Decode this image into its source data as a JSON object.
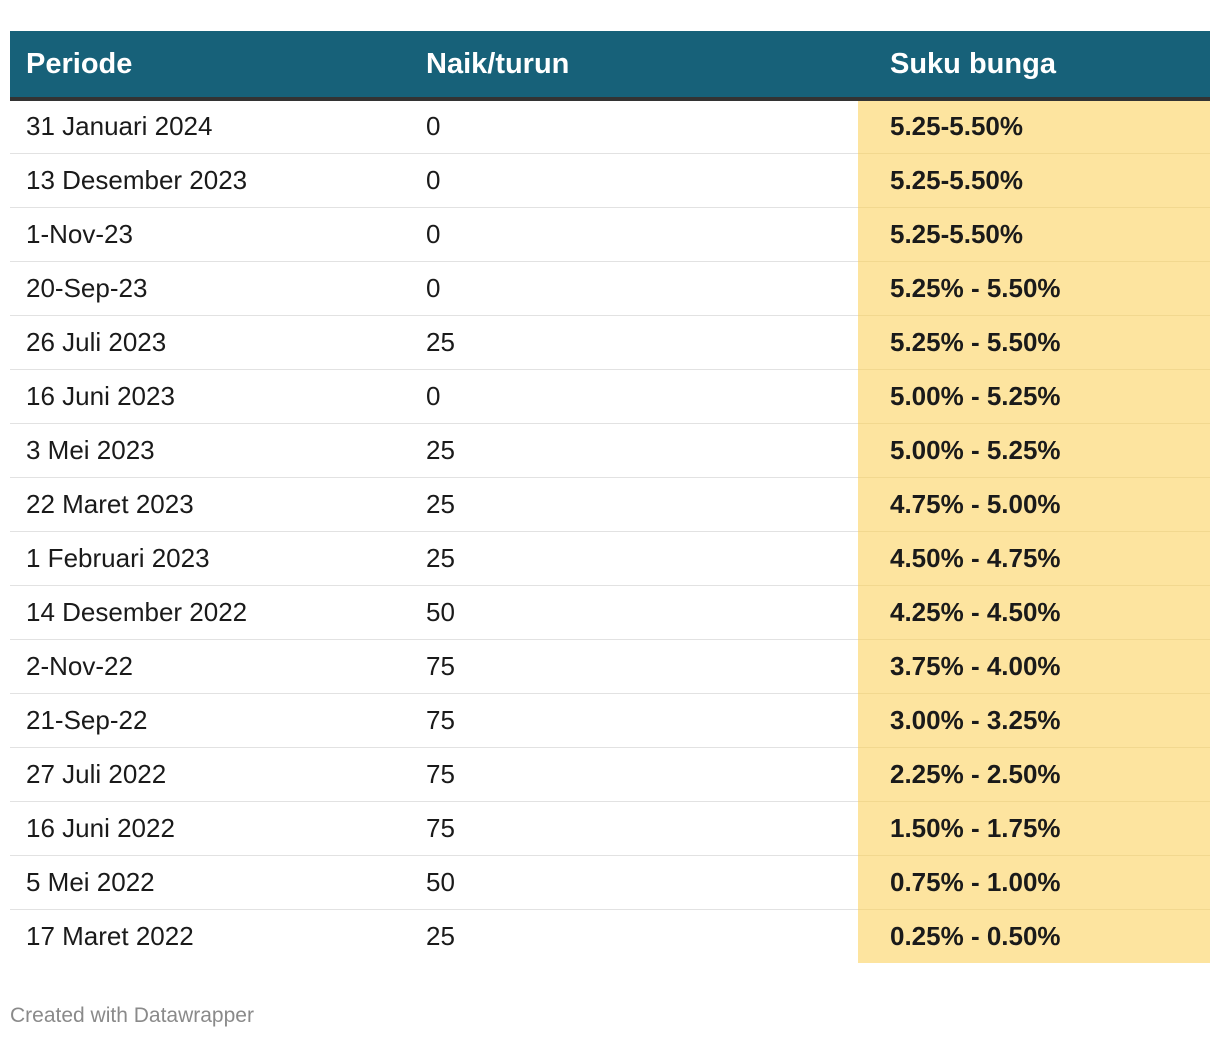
{
  "table": {
    "headers": [
      "Periode",
      "Naik/turun",
      "Suku bunga"
    ],
    "rows": [
      [
        "31 Januari 2024",
        "0",
        "5.25-5.50%"
      ],
      [
        "13 Desember 2023",
        "0",
        "5.25-5.50%"
      ],
      [
        "1-Nov-23",
        "0",
        "5.25-5.50%"
      ],
      [
        "20-Sep-23",
        "0",
        "5.25% - 5.50%"
      ],
      [
        "26 Juli 2023",
        "25",
        "5.25% - 5.50%"
      ],
      [
        "16 Juni 2023",
        "0",
        "5.00% - 5.25%"
      ],
      [
        "3 Mei 2023",
        "25",
        "5.00% - 5.25%"
      ],
      [
        "22 Maret 2023",
        "25",
        "4.75% - 5.00%"
      ],
      [
        "1 Februari 2023",
        "25",
        "4.50% - 4.75%"
      ],
      [
        "14 Desember 2022",
        "50",
        "4.25% - 4.50%"
      ],
      [
        "2-Nov-22",
        "75",
        "3.75% - 4.00%"
      ],
      [
        "21-Sep-22",
        "75",
        "3.00% - 3.25%"
      ],
      [
        "27 Juli 2022",
        "75",
        "2.25% - 2.50%"
      ],
      [
        "16 Juni 2022",
        "75",
        "1.50% - 1.75%"
      ],
      [
        "5 Mei 2022",
        "50",
        "0.75% - 1.00%"
      ],
      [
        "17 Maret 2022",
        "25",
        "0.25% - 0.50%"
      ]
    ]
  },
  "footer": {
    "credit": "Created with Datawrapper"
  },
  "colors": {
    "header_bg": "#176179",
    "header_text": "#ffffff",
    "highlight_column": "#fde49f",
    "footer_text": "#8a8a8a"
  },
  "chart_data": {
    "type": "table",
    "columns": [
      "Periode",
      "Naik/turun",
      "Suku bunga"
    ],
    "rows": [
      [
        "31 Januari 2024",
        "0",
        "5.25-5.50%"
      ],
      [
        "13 Desember 2023",
        "0",
        "5.25-5.50%"
      ],
      [
        "1-Nov-23",
        "0",
        "5.25-5.50%"
      ],
      [
        "20-Sep-23",
        "0",
        "5.25% - 5.50%"
      ],
      [
        "26 Juli 2023",
        "25",
        "5.25% - 5.50%"
      ],
      [
        "16 Juni 2023",
        "0",
        "5.00% - 5.25%"
      ],
      [
        "3 Mei 2023",
        "25",
        "5.00% - 5.25%"
      ],
      [
        "22 Maret 2023",
        "25",
        "4.75% - 5.00%"
      ],
      [
        "1 Februari 2023",
        "25",
        "4.50% - 4.75%"
      ],
      [
        "14 Desember 2022",
        "50",
        "4.25% - 4.50%"
      ],
      [
        "2-Nov-22",
        "75",
        "3.75% - 4.00%"
      ],
      [
        "21-Sep-22",
        "75",
        "3.00% - 3.25%"
      ],
      [
        "27 Juli 2022",
        "75",
        "2.25% - 2.50%"
      ],
      [
        "16 Juni 2022",
        "75",
        "1.50% - 1.75%"
      ],
      [
        "5 Mei 2022",
        "50",
        "0.75% - 1.00%"
      ],
      [
        "17 Maret 2022",
        "25",
        "0.25% - 0.50%"
      ]
    ],
    "highlighted_column": "Suku bunga"
  }
}
